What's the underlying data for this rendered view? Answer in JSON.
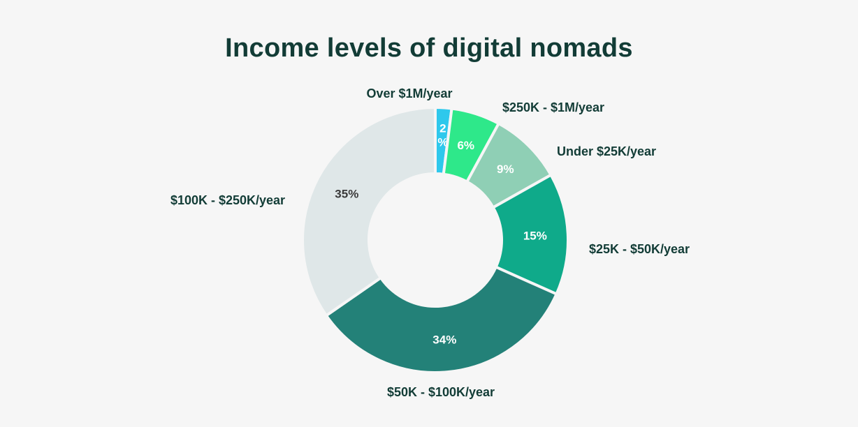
{
  "chart_data": {
    "type": "pie",
    "variant": "donut",
    "title": "Income levels of digital nomads",
    "start": "top",
    "direction": "clockwise",
    "slices": [
      {
        "label": "Over $1M/year",
        "value": 2,
        "value_label": "2%",
        "color": "#2ec8ec",
        "text_color": "#ffffff"
      },
      {
        "label": "$250K - $1M/year",
        "value": 6,
        "value_label": "6%",
        "color": "#2ee88a",
        "text_color": "#ffffff"
      },
      {
        "label": "Under $25K/year",
        "value": 9,
        "value_label": "9%",
        "color": "#8fcfb5",
        "text_color": "#ffffff"
      },
      {
        "label": "$25K - $50K/year",
        "value": 15,
        "value_label": "15%",
        "color": "#0faa8a",
        "text_color": "#ffffff"
      },
      {
        "label": "$50K - $100K/year",
        "value": 34,
        "value_label": "34%",
        "color": "#238178",
        "text_color": "#ffffff"
      },
      {
        "label": "$100K - $250K/year",
        "value": 35,
        "value_label": "35%",
        "color": "#dfe7e8",
        "text_color": "#3a3a3a"
      }
    ]
  }
}
